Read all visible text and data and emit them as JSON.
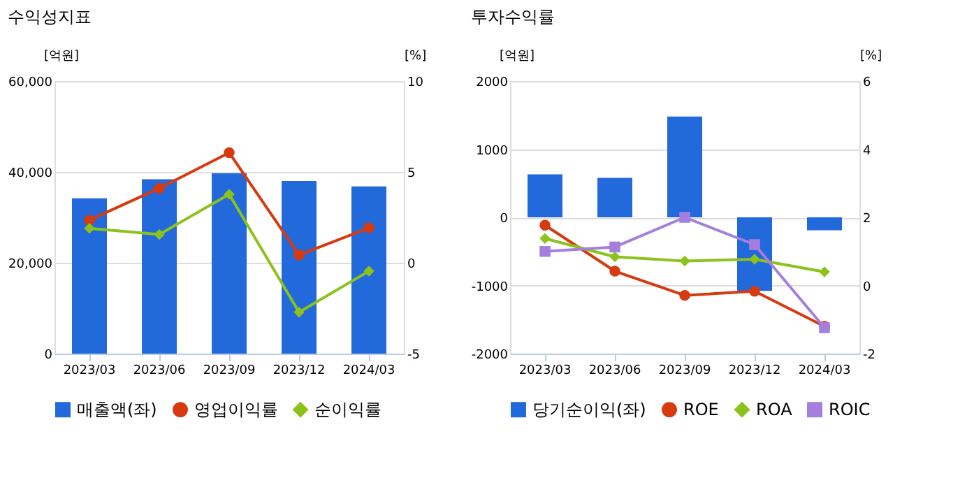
{
  "chart_data": [
    {
      "type": "bar",
      "title": "수익성지표",
      "ylabel": "[억원]",
      "y2label": "[%]",
      "categories": [
        "2023/03",
        "2023/06",
        "2023/09",
        "2023/12",
        "2024/03"
      ],
      "series": [
        {
          "name": "매출액(좌)",
          "color": "#2269dc",
          "values": [
            34200,
            38400,
            39700,
            38000,
            36800
          ]
        },
        {
          "name": "영업이익률",
          "type": "line",
          "axis": "y2",
          "marker": "circle",
          "color": "#d63b10",
          "values": [
            2.35,
            4.1,
            6.06,
            0.43,
            1.92
          ]
        },
        {
          "name": "순이익률",
          "type": "line",
          "axis": "y2",
          "marker": "diamond",
          "color": "#8cc21c",
          "values": [
            1.89,
            1.56,
            3.77,
            -2.72,
            -0.46
          ]
        }
      ],
      "ylim": [
        0,
        60000
      ],
      "yticks": [
        {
          "value": 0,
          "label": "0"
        },
        {
          "value": 20000,
          "label": "20,000"
        },
        {
          "value": 40000,
          "label": "40,000"
        },
        {
          "value": 60000,
          "label": "60,000"
        }
      ],
      "y2lim": [
        -5,
        10
      ],
      "y2ticks": [
        -5,
        0,
        5,
        10
      ],
      "grid": "y",
      "legend": "bottom",
      "line_style": "solid"
    },
    {
      "type": "bar",
      "title": "투자수익률",
      "ylabel": "[억원]",
      "y2label": "[%]",
      "categories": [
        "2023/03",
        "2023/06",
        "2023/09",
        "2023/12",
        "2024/03"
      ],
      "series": [
        {
          "name": "당기순이익(좌)",
          "color": "#2269dc",
          "values": [
            630,
            580,
            1480,
            -1080,
            -190
          ]
        },
        {
          "name": "ROE",
          "type": "line",
          "axis": "y2",
          "marker": "circle",
          "color": "#d63b10",
          "values": [
            1.77,
            0.42,
            -0.29,
            -0.17,
            -1.2
          ]
        },
        {
          "name": "ROA",
          "type": "line",
          "axis": "y2",
          "marker": "diamond",
          "color": "#8cc21c",
          "values": [
            1.38,
            0.84,
            0.72,
            0.77,
            0.4
          ]
        },
        {
          "name": "ROIC",
          "type": "line",
          "axis": "y2",
          "marker": "square",
          "color": "#a57fdd",
          "values": [
            1.0,
            1.13,
            2.0,
            1.2,
            -1.24
          ]
        }
      ],
      "ylim": [
        -2000,
        2000
      ],
      "yticks": [
        -2000,
        -1000,
        0,
        1000,
        2000
      ],
      "y2lim": [
        -2,
        6
      ],
      "y2ticks": [
        -2,
        0,
        2,
        4,
        6
      ],
      "grid": "y",
      "legend": "bottom",
      "line_style": "solid"
    }
  ]
}
